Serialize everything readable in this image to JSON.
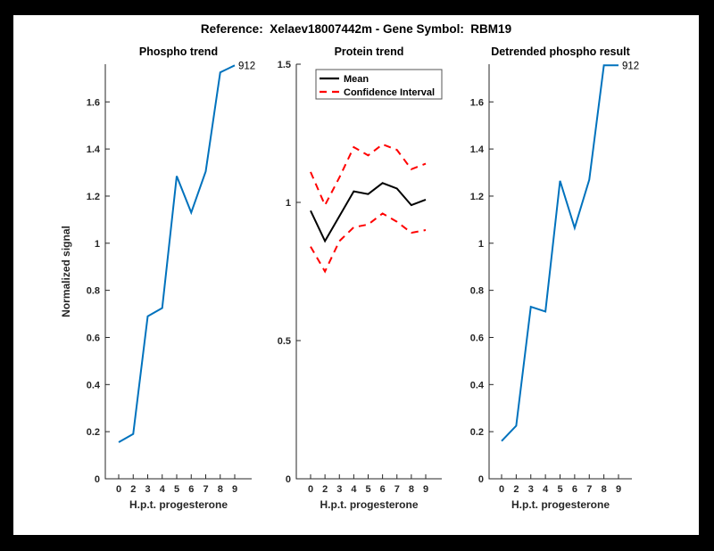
{
  "page": {
    "background_color": "#000000",
    "canvas_color": "#ffffff"
  },
  "header": {
    "title": "Reference:  Xelaev18007442m - Gene Symbol:  RBM19"
  },
  "colors": {
    "matlab_blue": "#0072BD",
    "mean_black": "#000000",
    "ci_red": "#ff0000",
    "axis_color": "#262626"
  },
  "chart_data": [
    {
      "type": "line",
      "title": "Phospho trend",
      "xlabel": "H.p.t. progesterone",
      "ylabel": "Normalized signal",
      "x_ticklabels": [
        "0",
        "2",
        "3",
        "4",
        "5",
        "6",
        "7",
        "8",
        "9"
      ],
      "yticks": [
        0,
        0.2,
        0.4,
        0.6,
        0.8,
        1,
        1.2,
        1.4,
        1.6
      ],
      "ylim": [
        0,
        1.76
      ],
      "grid": false,
      "legend": null,
      "end_label": "912",
      "series": [
        {
          "name": "phospho-signal",
          "color": "#0072BD",
          "dash": "solid",
          "values": [
            0.155,
            0.19,
            0.69,
            0.725,
            1.285,
            1.13,
            1.305,
            1.725,
            1.755
          ]
        }
      ]
    },
    {
      "type": "line",
      "title": "Protein trend",
      "xlabel": "H.p.t. progesterone",
      "ylabel": "",
      "x_ticklabels": [
        "0",
        "2",
        "3",
        "4",
        "5",
        "6",
        "7",
        "8",
        "9"
      ],
      "yticks": [
        0,
        0.5,
        1,
        1.5
      ],
      "ylim": [
        0,
        1.5
      ],
      "grid": false,
      "end_label": null,
      "legend": {
        "position": "top-left",
        "entries": [
          {
            "label": "Mean",
            "color": "#000000",
            "dash": "solid"
          },
          {
            "label": "Confidence Interval",
            "color": "#ff0000",
            "dash": "dashed"
          }
        ]
      },
      "series": [
        {
          "name": "mean",
          "color": "#000000",
          "dash": "solid",
          "values": [
            0.97,
            0.86,
            0.95,
            1.04,
            1.03,
            1.07,
            1.05,
            0.99,
            1.01
          ]
        },
        {
          "name": "ci-upper",
          "color": "#ff0000",
          "dash": "dashed",
          "values": [
            1.11,
            0.99,
            1.09,
            1.2,
            1.17,
            1.21,
            1.19,
            1.12,
            1.14
          ]
        },
        {
          "name": "ci-lower",
          "color": "#ff0000",
          "dash": "dashed",
          "values": [
            0.84,
            0.75,
            0.86,
            0.91,
            0.92,
            0.96,
            0.93,
            0.89,
            0.9
          ]
        }
      ]
    },
    {
      "type": "line",
      "title": "Detrended phospho result",
      "xlabel": "H.p.t. progesterone",
      "ylabel": "",
      "x_ticklabels": [
        "0",
        "2",
        "3",
        "4",
        "5",
        "6",
        "7",
        "8",
        "9"
      ],
      "yticks": [
        0,
        0.2,
        0.4,
        0.6,
        0.8,
        1,
        1.2,
        1.4,
        1.6
      ],
      "ylim": [
        0,
        1.76
      ],
      "grid": false,
      "legend": null,
      "end_label": "912",
      "series": [
        {
          "name": "detrended-signal",
          "color": "#0072BD",
          "dash": "solid",
          "values": [
            0.16,
            0.225,
            0.73,
            0.71,
            1.265,
            1.065,
            1.27,
            1.755,
            1.755
          ]
        }
      ]
    }
  ]
}
